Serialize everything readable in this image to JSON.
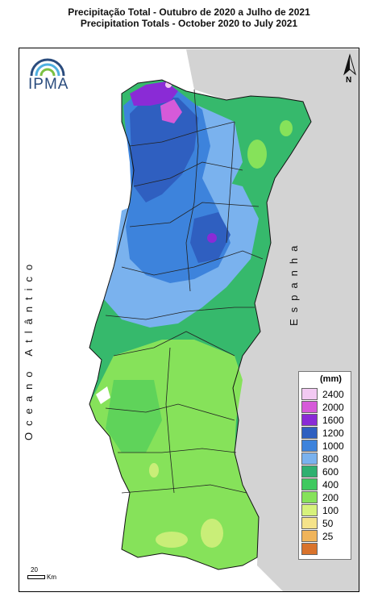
{
  "header": {
    "title_pt": "Precipitação Total  - Outubro de 2020 a Julho de 2021",
    "title_en": "Precipitation Totals - October 2020 to July 2021"
  },
  "labels": {
    "ocean": "Oceano Atlântico",
    "spain": "Espanha"
  },
  "logo": {
    "text": "IPMA"
  },
  "north_arrow": {
    "label": "N"
  },
  "scale_bar": {
    "value": "20",
    "unit": "Km"
  },
  "legend": {
    "unit": "(mm)",
    "classes": [
      {
        "label": "2400",
        "color": "#f2c9f2"
      },
      {
        "label": "2000",
        "color": "#d65ad9"
      },
      {
        "label": "1600",
        "color": "#8a2bd6"
      },
      {
        "label": "1200",
        "color": "#2f5fc0"
      },
      {
        "label": "1000",
        "color": "#3d83dc"
      },
      {
        "label": "800",
        "color": "#7ab2ee"
      },
      {
        "label": "600",
        "color": "#2fb070"
      },
      {
        "label": "400",
        "color": "#3fc95f"
      },
      {
        "label": "200",
        "color": "#86e25a"
      },
      {
        "label": "100",
        "color": "#d7f27c"
      },
      {
        "label": "50",
        "color": "#f5e38a"
      },
      {
        "label": "25",
        "color": "#f0b45a"
      },
      {
        "label": "",
        "color": "#d9732c"
      }
    ]
  },
  "colors": {
    "spain_land": "#d3d3d3",
    "border_lines": "#222222"
  }
}
